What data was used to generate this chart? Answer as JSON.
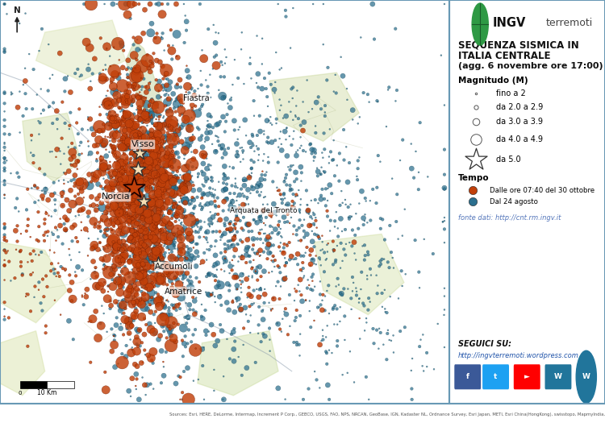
{
  "title_line1": "SEQUENZA SISMICA IN",
  "title_line2": "ITALIA CENTRALE",
  "title_line3": "(agg. 6 novembre ore 17:00)",
  "legend_title_magnitude": "Magnitudo (M)",
  "legend_items_magnitude": [
    {
      "label": "fino a 2",
      "size": 2
    },
    {
      "label": "da 2.0 a 2.9",
      "size": 8
    },
    {
      "label": "da 3.0 a 3.9",
      "size": 18
    },
    {
      "label": "da 4.0 a 4.9",
      "size": 45
    },
    {
      "label": "da 5.0",
      "marker": "star"
    }
  ],
  "legend_title_tempo": "Tempo",
  "legend_tempo_items": [
    {
      "label": "Dalle ore 07:40 del 30 ottobre",
      "color": "#C1400A"
    },
    {
      "label": "Dal 24 agosto",
      "color": "#2B6F8E"
    }
  ],
  "fonte": "fonte dati: http://cnt.rm.ingv.it",
  "seguici": "SEGUICI SU:",
  "website": "http://ingvterremoti.wordpress.com",
  "map_bg": "#D9E4C5",
  "map_bg2": "#C8D9A8",
  "map_bg3": "#E8EFD8",
  "border_color": "#6899B5",
  "circle_color_red": "#C1400A",
  "circle_color_blue": "#2B6F8E",
  "star_fill": "#F5DEB3",
  "star_red_fill": "#C1400A",
  "icon_colors": [
    "#3B5998",
    "#1DA1F2",
    "#FF0000",
    "#21759B"
  ],
  "icon_labels": [
    "f",
    "t",
    "►",
    "W"
  ],
  "sources_text": "Sources: Esri, HERE, DeLorme, Intermap, Increment P Corp., GEBCO, USGS, FAO, NPS, NRCAN, GeoBase, IGN, Kadaster NL, Ordnance Survey, Esri Japan, METI, Esri China(HongKong), swisstopo, Mapmylndia, © OpenStreetMap contributors, and the GIS User Community"
}
